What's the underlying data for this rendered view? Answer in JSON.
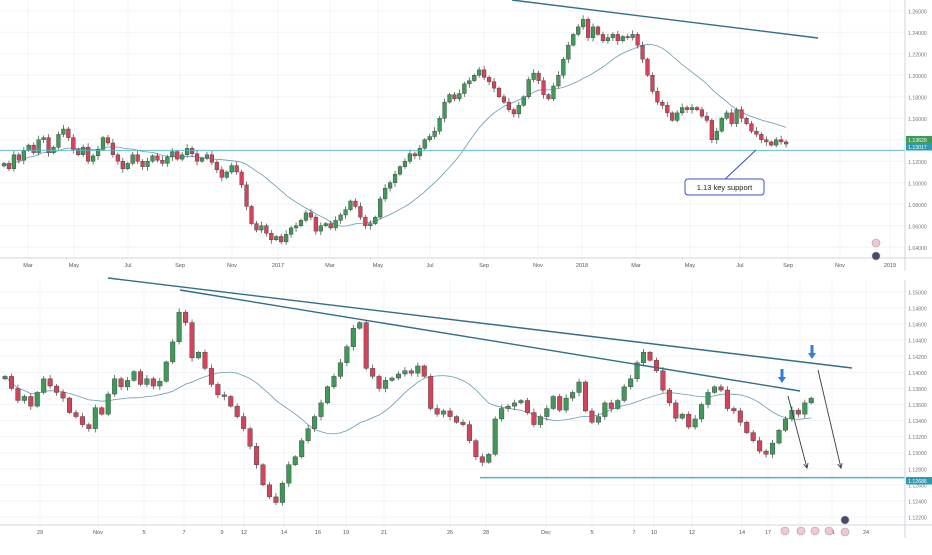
{
  "chart_data": [
    {
      "type": "candlestick",
      "title": "",
      "xlabel": "",
      "ylabel": "",
      "ylim": [
        1.03,
        1.27
      ],
      "y_ticks": [
        "1.04000",
        "1.06000",
        "1.08000",
        "1.10000",
        "1.12000",
        "1.14000",
        "1.16000",
        "1.18000",
        "1.20000",
        "1.22000",
        "1.24000",
        "1.26000"
      ],
      "x_ticks": [
        "Mar",
        "May",
        "Jul",
        "Sep",
        "Nov",
        "2017",
        "Mar",
        "May",
        "Jul",
        "Sep",
        "Nov",
        "2018",
        "Mar",
        "May",
        "Jul",
        "Sep",
        "Nov",
        "2019"
      ],
      "price_labels": [
        "1.13629",
        "1.13017"
      ],
      "support_level": 1.1302,
      "annotation": "1.13 key support",
      "close": [
        1.118,
        1.113,
        1.126,
        1.121,
        1.13,
        1.135,
        1.128,
        1.14,
        1.142,
        1.128,
        1.133,
        1.145,
        1.15,
        1.142,
        1.131,
        1.126,
        1.133,
        1.12,
        1.125,
        1.131,
        1.142,
        1.137,
        1.126,
        1.12,
        1.113,
        1.118,
        1.126,
        1.12,
        1.115,
        1.12,
        1.125,
        1.121,
        1.118,
        1.124,
        1.129,
        1.122,
        1.126,
        1.132,
        1.127,
        1.12,
        1.123,
        1.126,
        1.119,
        1.112,
        1.105,
        1.11,
        1.116,
        1.11,
        1.098,
        1.078,
        1.062,
        1.056,
        1.06,
        1.053,
        1.047,
        1.05,
        1.045,
        1.052,
        1.058,
        1.06,
        1.065,
        1.072,
        1.068,
        1.055,
        1.06,
        1.062,
        1.058,
        1.065,
        1.07,
        1.075,
        1.083,
        1.078,
        1.068,
        1.06,
        1.062,
        1.068,
        1.085,
        1.095,
        1.1,
        1.108,
        1.115,
        1.12,
        1.127,
        1.125,
        1.132,
        1.14,
        1.143,
        1.148,
        1.16,
        1.175,
        1.182,
        1.178,
        1.183,
        1.192,
        1.195,
        1.2,
        1.205,
        1.198,
        1.194,
        1.188,
        1.18,
        1.175,
        1.168,
        1.164,
        1.172,
        1.18,
        1.196,
        1.202,
        1.195,
        1.182,
        1.178,
        1.19,
        1.2,
        1.215,
        1.228,
        1.238,
        1.245,
        1.252,
        1.235,
        1.245,
        1.238,
        1.232,
        1.235,
        1.238,
        1.232,
        1.236,
        1.235,
        1.238,
        1.228,
        1.215,
        1.2,
        1.185,
        1.175,
        1.172,
        1.165,
        1.158,
        1.165,
        1.17,
        1.168,
        1.17,
        1.168,
        1.162,
        1.158,
        1.14,
        1.148,
        1.16,
        1.165,
        1.155,
        1.168,
        1.16,
        1.155,
        1.148,
        1.145,
        1.14,
        1.138,
        1.135,
        1.14,
        1.138,
        1.136
      ]
    },
    {
      "type": "candlestick",
      "title": "",
      "xlabel": "",
      "ylabel": "",
      "ylim": [
        1.121,
        1.1515
      ],
      "y_ticks": [
        "1.12200",
        "1.12400",
        "1.12600",
        "1.12800",
        "1.13000",
        "1.13200",
        "1.13400",
        "1.13600",
        "1.13800",
        "1.14000",
        "1.14200",
        "1.14400",
        "1.14600",
        "1.14800",
        "1.15000"
      ],
      "x_ticks": [
        "29",
        "Nov",
        "5",
        "7",
        "9",
        "12",
        "14",
        "16",
        "19",
        "21",
        "26",
        "28",
        "Dec",
        "5",
        "7",
        "10",
        "12",
        "14",
        "17",
        "19",
        "21",
        "24"
      ],
      "price_labels": [
        "1.12686"
      ],
      "support_level": 1.1269,
      "close": [
        1.1395,
        1.138,
        1.1365,
        1.137,
        1.1358,
        1.1375,
        1.1392,
        1.1383,
        1.1375,
        1.1368,
        1.135,
        1.1345,
        1.1335,
        1.133,
        1.1356,
        1.1348,
        1.1373,
        1.1392,
        1.1382,
        1.139,
        1.1401,
        1.1385,
        1.1392,
        1.1383,
        1.1389,
        1.1413,
        1.1438,
        1.1475,
        1.1462,
        1.1418,
        1.1425,
        1.1405,
        1.1385,
        1.1372,
        1.137,
        1.1358,
        1.1345,
        1.133,
        1.1308,
        1.1285,
        1.126,
        1.1245,
        1.1238,
        1.1262,
        1.1285,
        1.1295,
        1.1315,
        1.133,
        1.1345,
        1.1362,
        1.1382,
        1.1395,
        1.1412,
        1.1432,
        1.1455,
        1.1462,
        1.1405,
        1.1395,
        1.138,
        1.139,
        1.1393,
        1.1398,
        1.1402,
        1.1399,
        1.1408,
        1.1395,
        1.1355,
        1.1348,
        1.1352,
        1.1345,
        1.1338,
        1.1335,
        1.1315,
        1.1295,
        1.1288,
        1.1298,
        1.1342,
        1.1355,
        1.1358,
        1.1362,
        1.1365,
        1.135,
        1.1335,
        1.1345,
        1.1355,
        1.137,
        1.1353,
        1.1368,
        1.1375,
        1.1388,
        1.1352,
        1.1338,
        1.1345,
        1.1362,
        1.1355,
        1.1365,
        1.1382,
        1.1392,
        1.1412,
        1.1425,
        1.1415,
        1.1402,
        1.1378,
        1.1362,
        1.1343,
        1.1348,
        1.1332,
        1.1342,
        1.136,
        1.1375,
        1.1382,
        1.1378,
        1.1355,
        1.1352,
        1.1338,
        1.1325,
        1.1315,
        1.1302,
        1.1298,
        1.1312,
        1.1328,
        1.1342,
        1.1353,
        1.1348,
        1.1362,
        1.1368
      ]
    }
  ]
}
